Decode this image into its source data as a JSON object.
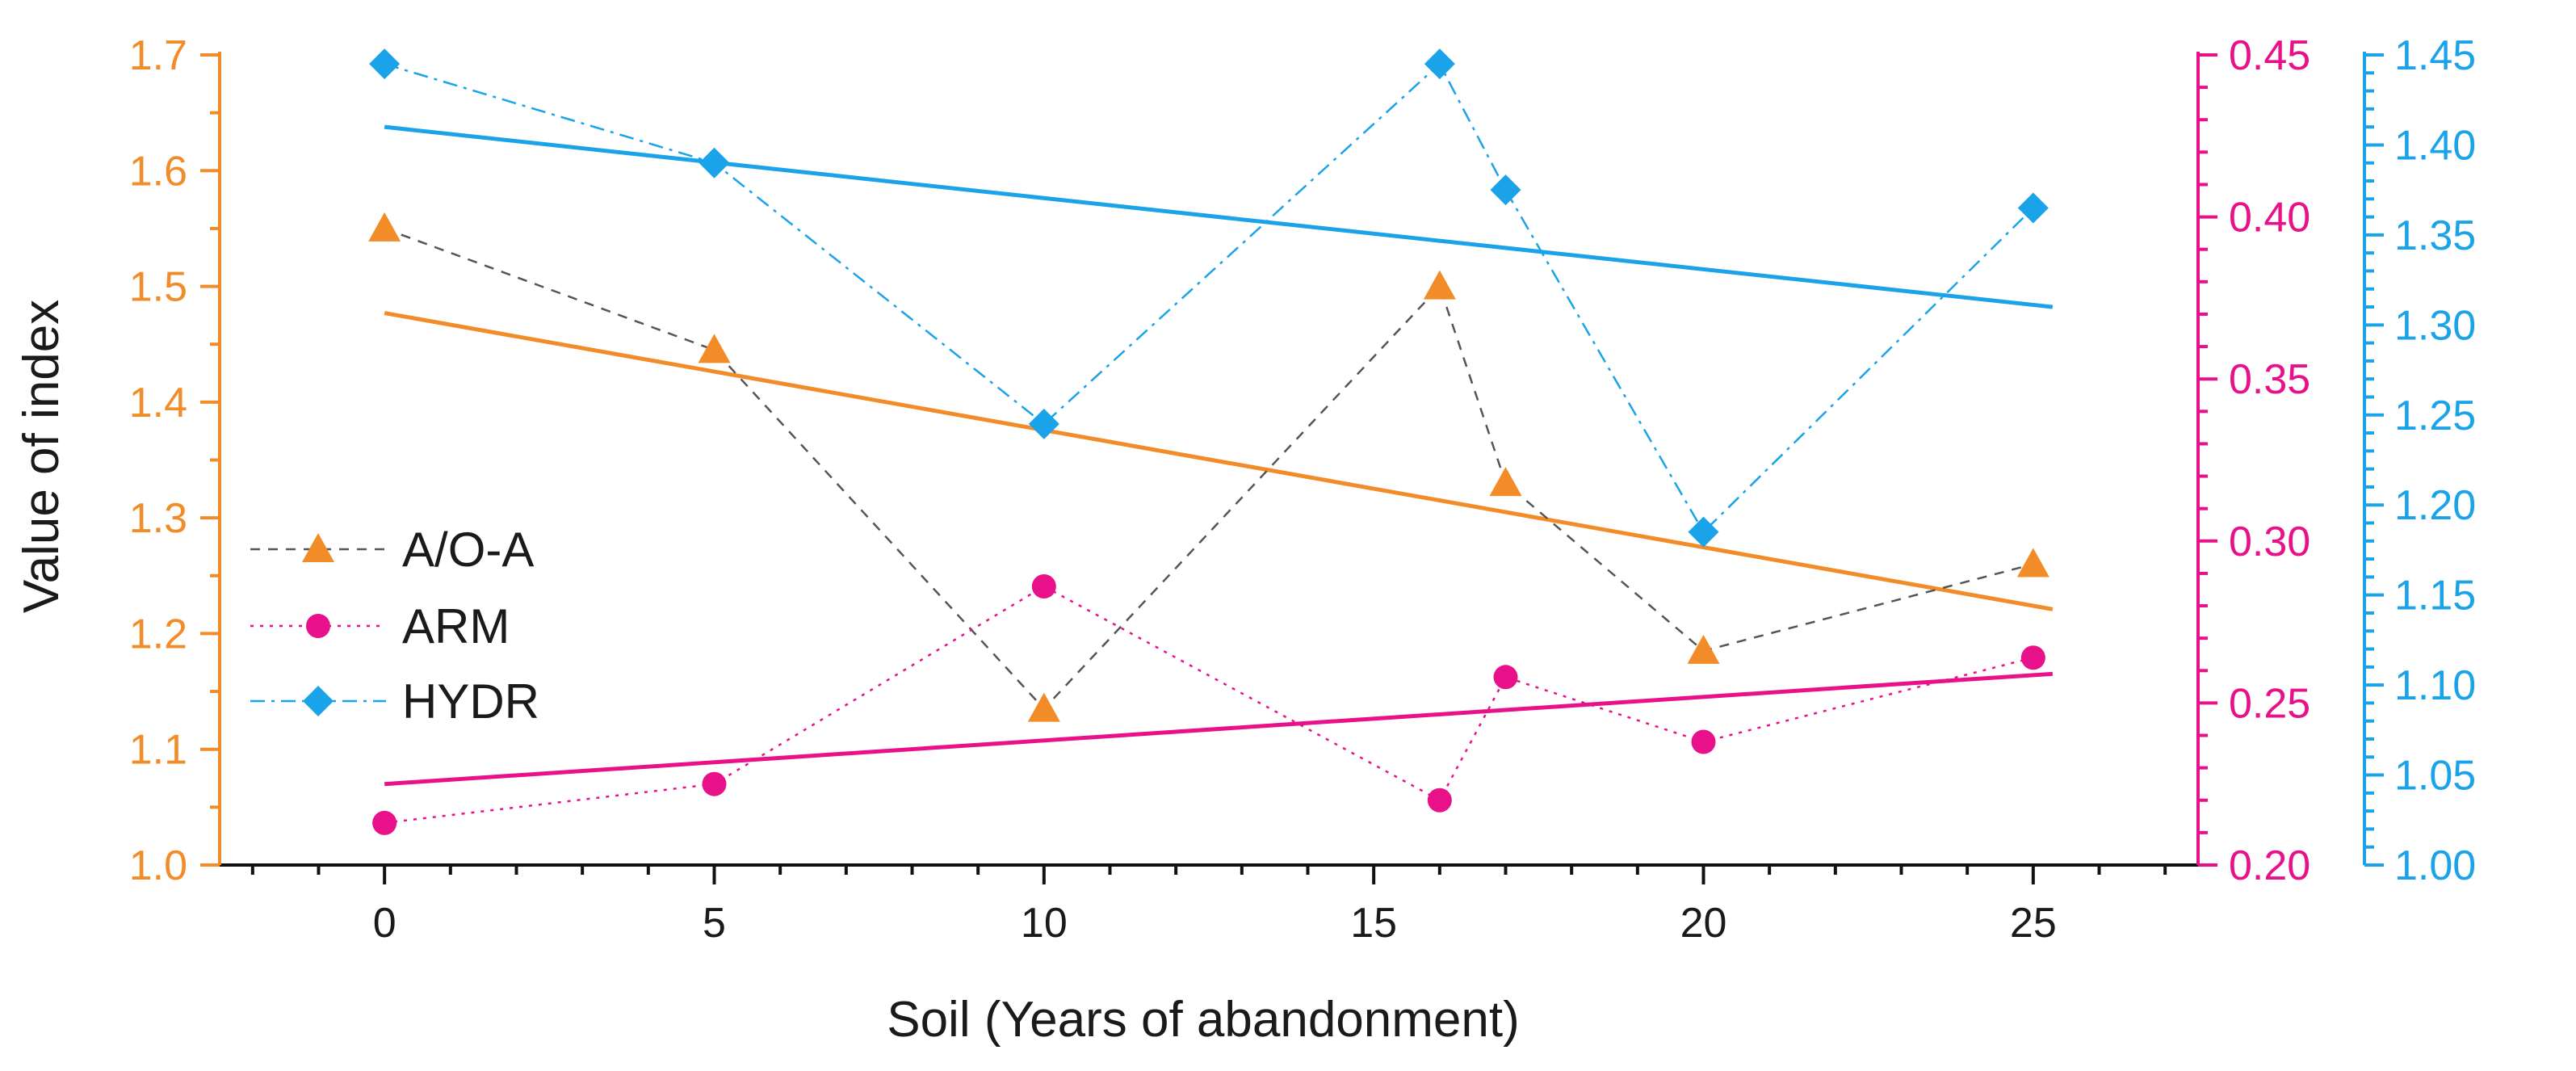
{
  "chart_data": {
    "type": "line",
    "title": "",
    "xlabel": "Soil (Years of abandonment)",
    "ylabel": "Value of index",
    "xlim": [
      -2.5,
      27.5
    ],
    "x_ticks": [
      "0",
      "5",
      "10",
      "15",
      "20",
      "25"
    ],
    "x_tick_values": [
      0,
      5,
      10,
      15,
      20,
      25
    ],
    "x": [
      0,
      5,
      10,
      16,
      17,
      20,
      25
    ],
    "axes": {
      "left": {
        "color": "#F28C28",
        "ylim": [
          1.0,
          1.7
        ],
        "ticks": [
          "1.0",
          "1.1",
          "1.2",
          "1.3",
          "1.4",
          "1.5",
          "1.6",
          "1.7"
        ],
        "tick_values": [
          1.0,
          1.1,
          1.2,
          1.3,
          1.4,
          1.5,
          1.6,
          1.7
        ]
      },
      "right1": {
        "color": "#E8118A",
        "ylim": [
          0.2,
          0.45
        ],
        "ticks": [
          "0.20",
          "0.25",
          "0.30",
          "0.35",
          "0.40",
          "0.45"
        ],
        "tick_values": [
          0.2,
          0.25,
          0.3,
          0.35,
          0.4,
          0.45
        ]
      },
      "right2": {
        "color": "#1AA3E8",
        "ylim": [
          1.0,
          1.45
        ],
        "ticks": [
          "1.00",
          "1.05",
          "1.10",
          "1.15",
          "1.20",
          "1.25",
          "1.30",
          "1.35",
          "1.40",
          "1.45"
        ],
        "tick_values": [
          1.0,
          1.05,
          1.1,
          1.15,
          1.2,
          1.25,
          1.3,
          1.35,
          1.4,
          1.45
        ]
      }
    },
    "series": [
      {
        "name": "A/O-A",
        "axis": "left",
        "marker": "triangle",
        "color": "#F28C28",
        "line_color": "#555555",
        "line_style": "dashed",
        "values": [
          1.55,
          1.445,
          1.135,
          1.5,
          1.33,
          1.185,
          1.26
        ],
        "trend": [
          1.477,
          1.221
        ]
      },
      {
        "name": "ARM",
        "axis": "right1",
        "marker": "circle",
        "color": "#E8118A",
        "line_color": "#E8118A",
        "line_style": "dotted",
        "values": [
          0.213,
          0.225,
          0.286,
          0.22,
          0.258,
          0.238,
          0.264
        ],
        "trend": [
          0.225,
          0.259
        ]
      },
      {
        "name": "HYDR",
        "axis": "right2",
        "marker": "diamond",
        "color": "#1AA3E8",
        "line_color": "#1AA3E8",
        "line_style": "dashdot",
        "values": [
          1.445,
          1.39,
          1.245,
          1.445,
          1.375,
          1.185,
          1.365
        ],
        "trend": [
          1.41,
          1.31
        ]
      }
    ],
    "legend_position": "center-left"
  }
}
